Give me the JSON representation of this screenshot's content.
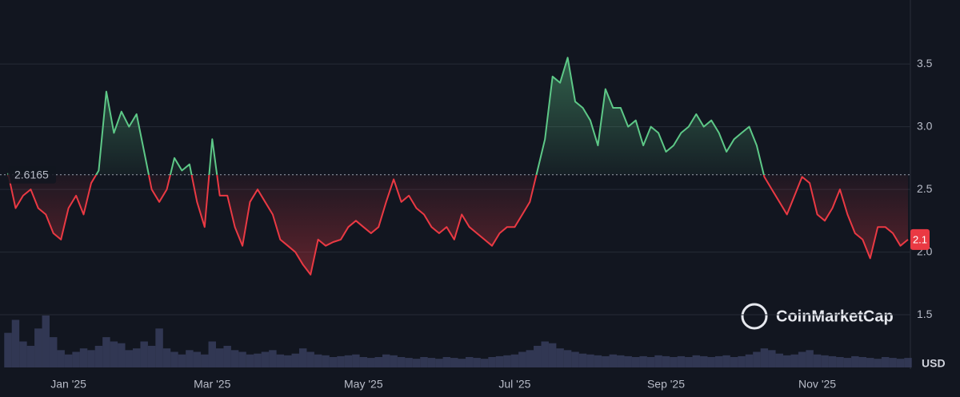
{
  "chart_data": {
    "type": "line",
    "categories": [
      null,
      null,
      null,
      null,
      null,
      null,
      null,
      null,
      "Jan '25",
      null,
      null,
      null,
      null,
      null,
      null,
      null,
      null,
      null,
      null,
      null,
      null,
      null,
      null,
      null,
      null,
      null,
      null,
      "Mar '25",
      null,
      null,
      null,
      null,
      null,
      null,
      null,
      null,
      null,
      null,
      null,
      null,
      null,
      null,
      null,
      null,
      null,
      null,
      null,
      "May '25",
      null,
      null,
      null,
      null,
      null,
      null,
      null,
      null,
      null,
      null,
      null,
      null,
      null,
      null,
      null,
      null,
      null,
      null,
      null,
      "Jul '25",
      null,
      null,
      null,
      null,
      null,
      null,
      null,
      null,
      null,
      null,
      null,
      null,
      null,
      null,
      null,
      null,
      null,
      null,
      null,
      "Sep '25",
      null,
      null,
      null,
      null,
      null,
      null,
      null,
      null,
      null,
      null,
      null,
      null,
      null,
      null,
      null,
      null,
      null,
      null,
      null,
      "Nov '25",
      null,
      null,
      null,
      null,
      null,
      null,
      null,
      null,
      null,
      null,
      null,
      null
    ],
    "values": [
      2.63,
      2.35,
      2.45,
      2.5,
      2.35,
      2.3,
      2.15,
      2.1,
      2.35,
      2.45,
      2.3,
      2.55,
      2.65,
      3.28,
      2.95,
      3.12,
      3.0,
      3.1,
      2.8,
      2.5,
      2.4,
      2.5,
      2.75,
      2.65,
      2.7,
      2.4,
      2.2,
      2.9,
      2.45,
      2.45,
      2.2,
      2.05,
      2.4,
      2.5,
      2.4,
      2.3,
      2.1,
      2.05,
      2.0,
      1.9,
      1.82,
      2.1,
      2.05,
      2.08,
      2.1,
      2.2,
      2.25,
      2.2,
      2.15,
      2.2,
      2.4,
      2.58,
      2.4,
      2.45,
      2.35,
      2.3,
      2.2,
      2.15,
      2.2,
      2.1,
      2.3,
      2.2,
      2.15,
      2.1,
      2.05,
      2.15,
      2.2,
      2.2,
      2.3,
      2.4,
      2.65,
      2.9,
      3.4,
      3.35,
      3.55,
      3.2,
      3.15,
      3.05,
      2.85,
      3.3,
      3.15,
      3.15,
      3.0,
      3.05,
      2.85,
      3.0,
      2.95,
      2.8,
      2.85,
      2.95,
      3.0,
      3.1,
      3.0,
      3.05,
      2.95,
      2.8,
      2.9,
      2.95,
      3.0,
      2.85,
      2.6,
      2.5,
      2.4,
      2.3,
      2.45,
      2.6,
      2.55,
      2.3,
      2.25,
      2.35,
      2.5,
      2.3,
      2.15,
      2.1,
      1.95,
      2.2,
      2.2,
      2.15,
      2.05,
      2.1
    ],
    "volume": [
      40,
      55,
      30,
      25,
      45,
      60,
      35,
      20,
      15,
      18,
      22,
      20,
      25,
      35,
      30,
      28,
      20,
      22,
      30,
      25,
      45,
      22,
      18,
      15,
      20,
      18,
      15,
      30,
      22,
      25,
      20,
      18,
      15,
      16,
      18,
      20,
      15,
      14,
      16,
      22,
      18,
      15,
      14,
      12,
      13,
      14,
      15,
      12,
      11,
      12,
      15,
      14,
      12,
      11,
      10,
      12,
      11,
      10,
      12,
      11,
      10,
      12,
      11,
      10,
      12,
      13,
      14,
      15,
      18,
      20,
      25,
      30,
      28,
      22,
      20,
      18,
      16,
      15,
      14,
      13,
      15,
      14,
      13,
      12,
      13,
      12,
      14,
      13,
      12,
      13,
      12,
      14,
      13,
      12,
      13,
      14,
      12,
      13,
      15,
      18,
      22,
      20,
      16,
      14,
      15,
      18,
      20,
      15,
      14,
      13,
      12,
      11,
      13,
      12,
      11,
      10,
      12,
      11,
      10,
      11
    ],
    "baseline": 2.6165,
    "last_price": 2.1,
    "currency": "USD",
    "watermark": "CoinMarketCap",
    "up_color": "#5dc887",
    "down_color": "#ea3943",
    "volume_color": "#3a4060",
    "ylim": [
      1.08,
      4.01
    ],
    "yticks": [
      1.5,
      {
        "value": 2,
        "label": "2.0"
      },
      2.5,
      {
        "value": 3,
        "label": "3.0"
      },
      3.5
    ],
    "grid": true
  }
}
